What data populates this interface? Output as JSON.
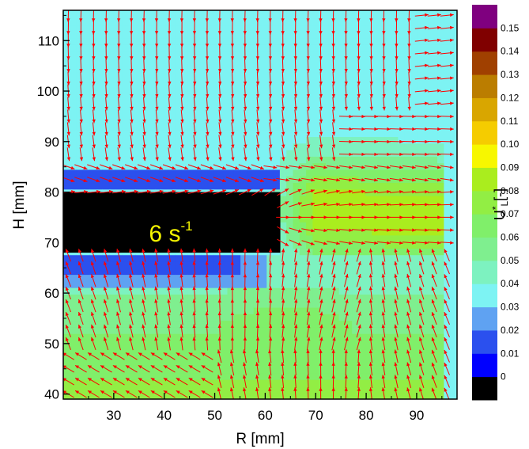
{
  "chart_data": {
    "type": "heatmap",
    "subtype": "contour-with-vector-field",
    "xlabel": "R [mm]",
    "ylabel": "H [mm]",
    "xlim": [
      20,
      98
    ],
    "ylim": [
      39,
      116
    ],
    "x_ticks": [
      30,
      40,
      50,
      60,
      70,
      80,
      90
    ],
    "y_ticks": [
      40,
      50,
      60,
      70,
      80,
      90,
      100,
      110
    ],
    "annotation": {
      "text": "6 s",
      "superscript": "-1"
    },
    "obstacle": {
      "x_range": [
        20,
        63
      ],
      "y_range": [
        68,
        80
      ],
      "color": "#000000"
    },
    "colorbar": {
      "title": "U*L[-]",
      "title_main": "U",
      "title_sup": "*",
      "title_sub": "L",
      "title_unit": "[-]",
      "levels": [
        "0",
        "0.01",
        "0.02",
        "0.03",
        "0.04",
        "0.05",
        "0.06",
        "0.07",
        "0.08",
        "0.09",
        "0.10",
        "0.11",
        "0.12",
        "0.13",
        "0.14",
        "0.15"
      ],
      "colors": [
        "#000000",
        "#0000ff",
        "#2b50ee",
        "#5fa2f2",
        "#7df3f3",
        "#7df2c0",
        "#7fef8f",
        "#80ef6a",
        "#92ee44",
        "#aaed1e",
        "#f7f700",
        "#f5cc00",
        "#d9a600",
        "#bb7d00",
        "#a04000",
        "#800000",
        "#7f007f"
      ]
    },
    "vector_color": "#ff0000",
    "vector_grid_spacing_mm": 2.5
  }
}
